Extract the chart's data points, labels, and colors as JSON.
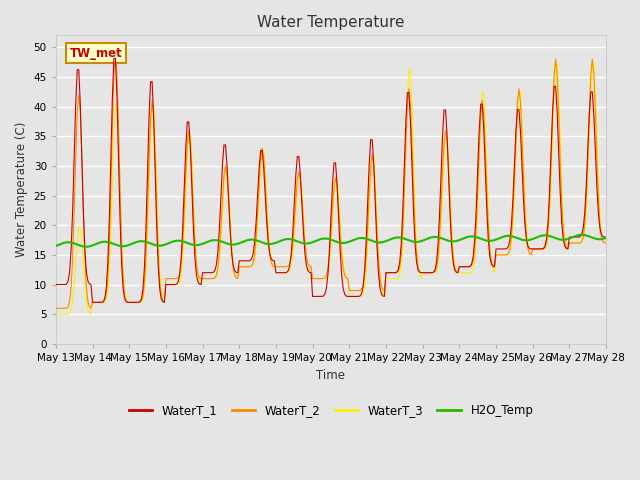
{
  "title": "Water Temperature",
  "ylabel": "Water Temperature (C)",
  "xlabel": "Time",
  "annotation": "TW_met",
  "ylim": [
    0,
    52
  ],
  "yticks": [
    0,
    5,
    10,
    15,
    20,
    25,
    30,
    35,
    40,
    45,
    50
  ],
  "background_color": "#e5e5e5",
  "plot_bg_color": "#e5e5e5",
  "grid_color": "#ffffff",
  "colors": {
    "WaterT_1": "#cc0000",
    "WaterT_2": "#ff8800",
    "WaterT_3": "#ffee00",
    "H2O_Temp": "#22bb00"
  },
  "x_tick_days": [
    13,
    14,
    15,
    16,
    17,
    18,
    19,
    20,
    21,
    22,
    23,
    24,
    25,
    26,
    27,
    28
  ],
  "figsize": [
    6.4,
    4.8
  ],
  "dpi": 100
}
